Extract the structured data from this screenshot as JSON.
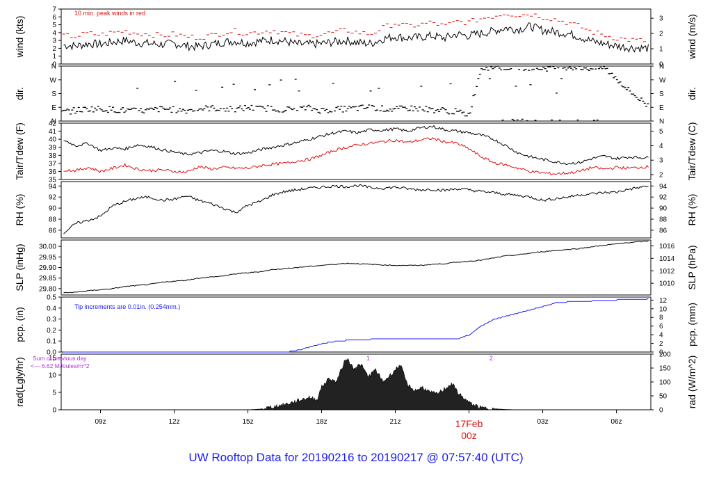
{
  "footer": "UW Rooftop Data for 20190216  to  20190217 @ 07:57:40  (UTC)",
  "colors": {
    "axis": "#000000",
    "red": "#e01010",
    "blue": "#1a1aff",
    "purple": "#b030d0"
  },
  "chart_data": [
    {
      "type": "line",
      "panel": "wind",
      "ylabel": "wind (kts)",
      "y2label": "wind (m/s)",
      "yticks": [
        0,
        1,
        2,
        3,
        4,
        5,
        6,
        7
      ],
      "ylim": [
        0,
        7
      ],
      "y2ticks": [
        0,
        1,
        2,
        3
      ],
      "y2_scale": 0.5144,
      "annotation": "10 min. peak winds in red",
      "series": [
        {
          "color": "#000000",
          "x": [
            7.5,
            8,
            8.5,
            9,
            9.5,
            10,
            10.5,
            11,
            11.5,
            12,
            12.5,
            13,
            13.5,
            14,
            14.5,
            15,
            15.5,
            16,
            16.5,
            17,
            17.5,
            18,
            18.5,
            19,
            19.5,
            20,
            20.5,
            21,
            21.5,
            22,
            22.5,
            23,
            23.5,
            24,
            24.5,
            25,
            25.5,
            26,
            26.5,
            27,
            27.5,
            28,
            28.5,
            29,
            29.5,
            30,
            30.5,
            31.3
          ],
          "y": [
            2.4,
            2.3,
            2.6,
            2.5,
            2.8,
            3.0,
            2.7,
            2.6,
            2.5,
            2.6,
            2.3,
            2.2,
            2.5,
            2.8,
            2.9,
            2.7,
            2.9,
            3.1,
            2.9,
            2.5,
            2.5,
            2.6,
            2.8,
            3.0,
            2.7,
            2.6,
            3.2,
            3.5,
            3.3,
            3.4,
            3.6,
            3.3,
            3.8,
            3.6,
            3.9,
            4.2,
            4.6,
            4.4,
            4.8,
            4.3,
            4.1,
            3.9,
            3.5,
            2.9,
            2.6,
            2.3,
            2.1,
            2.0
          ]
        },
        {
          "color": "#e01010",
          "x": [
            7.5,
            8,
            8.5,
            9,
            9.5,
            10,
            10.5,
            11,
            11.5,
            12,
            12.5,
            13,
            13.5,
            14,
            14.5,
            15,
            15.5,
            16,
            16.5,
            17,
            17.5,
            18,
            18.5,
            19,
            19.5,
            20,
            20.5,
            21,
            21.5,
            22,
            22.5,
            23,
            23.5,
            24,
            24.5,
            25,
            25.5,
            26,
            26.5,
            27,
            27.5,
            28,
            28.5,
            29,
            29.5,
            30,
            30.5,
            31.3
          ],
          "y": [
            3.6,
            3.5,
            3.9,
            3.7,
            4.0,
            4.2,
            3.9,
            3.8,
            3.6,
            3.8,
            3.5,
            3.4,
            3.6,
            4.0,
            4.2,
            3.9,
            4.1,
            4.3,
            4.0,
            3.7,
            3.6,
            3.8,
            4.0,
            4.3,
            4.0,
            3.8,
            4.6,
            5.2,
            4.8,
            5.0,
            5.3,
            4.8,
            5.4,
            5.3,
            5.8,
            6.1,
            6.5,
            6.2,
            6.4,
            6.0,
            5.7,
            5.3,
            4.8,
            4.1,
            3.7,
            3.3,
            3.1,
            2.9
          ]
        }
      ]
    },
    {
      "type": "scatter",
      "panel": "dir",
      "ylabel": "dir.",
      "y2label": "dir.",
      "yticklabels": [
        "N",
        "E",
        "S",
        "W",
        "N"
      ],
      "ylim": [
        0,
        360
      ],
      "series": [
        {
          "color": "#000000",
          "x": [
            7.5,
            8,
            8.5,
            9,
            9.5,
            10,
            10.5,
            11,
            11.5,
            12,
            12.5,
            13,
            13.5,
            14,
            14.5,
            15,
            15.5,
            16,
            16.5,
            17,
            17.5,
            18,
            18.5,
            19,
            19.5,
            20,
            20.5,
            21,
            21.5,
            22,
            22.5,
            23,
            23.5,
            24,
            24.5,
            25,
            25.5,
            26,
            26.5,
            27,
            27.5,
            28,
            28.5,
            29,
            29.5,
            30,
            30.5,
            31.3
          ],
          "y": [
            60,
            70,
            80,
            80,
            75,
            70,
            65,
            70,
            80,
            75,
            70,
            80,
            85,
            80,
            75,
            90,
            80,
            85,
            75,
            80,
            85,
            70,
            75,
            80,
            85,
            90,
            80,
            75,
            85,
            80,
            75,
            70,
            60,
            40,
            350,
            355,
            350,
            355,
            350,
            345,
            350,
            355,
            350,
            345,
            350,
            280,
            200,
            100
          ]
        }
      ]
    },
    {
      "type": "line",
      "panel": "temperature",
      "ylabel": "Tair/Tdew (F)",
      "y2label": "Tair/Tdew (C)",
      "yticks": [
        35,
        36,
        37,
        38,
        39,
        40,
        41,
        42
      ],
      "ylim": [
        35,
        42
      ],
      "y2ticks": [
        2,
        3,
        4,
        5
      ],
      "series": [
        {
          "color": "#000000",
          "x": [
            7.5,
            8,
            8.5,
            9,
            9.5,
            10,
            10.5,
            11,
            11.5,
            12,
            12.5,
            13,
            13.5,
            14,
            14.5,
            15,
            15.5,
            16,
            16.5,
            17,
            17.5,
            18,
            18.5,
            19,
            19.5,
            20,
            20.5,
            21,
            21.5,
            22,
            22.5,
            23,
            23.5,
            24,
            24.5,
            25,
            25.5,
            26,
            26.5,
            27,
            27.5,
            28,
            28.5,
            29,
            29.5,
            30,
            30.5,
            31.3
          ],
          "y": [
            39.9,
            39.2,
            39.5,
            38.6,
            38.9,
            38.8,
            39.3,
            39.1,
            38.7,
            38.4,
            38.1,
            38.3,
            38.6,
            38.5,
            38.2,
            38.3,
            38.7,
            39.0,
            39.3,
            39.6,
            40.0,
            40.4,
            40.8,
            41.0,
            40.8,
            41.2,
            41.1,
            41.3,
            41.0,
            41.4,
            41.6,
            41.2,
            41.0,
            40.8,
            40.5,
            40.0,
            39.2,
            38.3,
            37.8,
            37.5,
            37.2,
            37.0,
            37.1,
            37.6,
            37.9,
            37.6,
            37.8,
            37.7
          ]
        },
        {
          "color": "#e01010",
          "x": [
            7.5,
            8,
            8.5,
            9,
            9.5,
            10,
            10.5,
            11,
            11.5,
            12,
            12.5,
            13,
            13.5,
            14,
            14.5,
            15,
            15.5,
            16,
            16.5,
            17,
            17.5,
            18,
            18.5,
            19,
            19.5,
            20,
            20.5,
            21,
            21.5,
            22,
            22.5,
            23,
            23.5,
            24,
            24.5,
            25,
            25.5,
            26,
            26.5,
            27,
            27.5,
            28,
            28.5,
            29,
            29.5,
            30,
            30.5,
            31.3
          ],
          "y": [
            36.2,
            36.1,
            36.5,
            36.0,
            36.4,
            36.8,
            36.3,
            36.1,
            36.2,
            36.0,
            35.9,
            36.6,
            36.3,
            36.5,
            36.4,
            36.4,
            36.7,
            36.9,
            37.0,
            37.3,
            37.5,
            38.0,
            38.6,
            39.0,
            39.3,
            39.5,
            39.7,
            39.9,
            39.6,
            39.9,
            40.1,
            39.7,
            39.5,
            38.8,
            37.8,
            37.1,
            36.8,
            36.4,
            36.0,
            35.8,
            35.7,
            35.8,
            36.0,
            36.5,
            36.3,
            36.5,
            36.4,
            36.6
          ]
        }
      ]
    },
    {
      "type": "line",
      "panel": "rh",
      "ylabel": "RH (%)",
      "y2label": "RH (%)",
      "yticks": [
        86,
        88,
        90,
        92,
        94
      ],
      "ylim": [
        84.6,
        94.8
      ],
      "series": [
        {
          "color": "#000000",
          "x": [
            7.5,
            8,
            8.5,
            9,
            9.5,
            10,
            10.5,
            11,
            11.5,
            12,
            12.5,
            13,
            13.5,
            14,
            14.5,
            15,
            15.5,
            16,
            16.5,
            17,
            17.5,
            18,
            18.5,
            19,
            19.5,
            20,
            20.5,
            21,
            21.5,
            22,
            22.5,
            23,
            23.5,
            24,
            24.5,
            25,
            25.5,
            26,
            26.5,
            27,
            27.5,
            28,
            28.5,
            29,
            29.5,
            30,
            30.5,
            31.3
          ],
          "y": [
            85.5,
            87.2,
            87.8,
            88.5,
            90.4,
            91.2,
            91.8,
            92.0,
            91.4,
            91.6,
            92.2,
            91.4,
            90.8,
            90.0,
            89.2,
            90.5,
            91.2,
            92.4,
            93.0,
            93.3,
            93.6,
            93.8,
            94.0,
            93.9,
            94.1,
            93.7,
            93.6,
            93.8,
            93.5,
            93.3,
            93.4,
            93.2,
            93.5,
            93.3,
            93.0,
            92.8,
            92.5,
            92.3,
            92.0,
            91.4,
            91.7,
            92.0,
            92.4,
            92.6,
            92.8,
            92.9,
            93.4,
            94.0
          ]
        }
      ]
    },
    {
      "type": "line",
      "panel": "slp",
      "ylabel": "SLP (inHg)",
      "y2label": "SLP (hPa)",
      "yticks": [
        29.8,
        29.85,
        29.9,
        29.95,
        30.0
      ],
      "yticklabels": [
        "29.80",
        "29.85",
        "29.90",
        "29.95",
        "30.00"
      ],
      "ylim": [
        29.77,
        30.03
      ],
      "y2ticks": [
        1010,
        1012,
        1014,
        1016
      ],
      "series": [
        {
          "color": "#000000",
          "x": [
            7.5,
            8,
            8.5,
            9,
            9.5,
            10,
            10.5,
            11,
            11.5,
            12,
            12.5,
            13,
            13.5,
            14,
            14.5,
            15,
            15.5,
            16,
            16.5,
            17,
            17.5,
            18,
            18.5,
            19,
            19.5,
            20,
            20.5,
            21,
            21.5,
            22,
            22.5,
            23,
            23.5,
            24,
            24.5,
            25,
            25.5,
            26,
            26.5,
            27,
            27.5,
            28,
            28.5,
            29,
            29.5,
            30,
            30.5,
            31.3
          ],
          "y": [
            29.78,
            29.783,
            29.79,
            29.795,
            29.8,
            29.81,
            29.815,
            29.82,
            29.83,
            29.835,
            29.84,
            29.85,
            29.855,
            29.86,
            29.87,
            29.875,
            29.88,
            29.89,
            29.895,
            29.9,
            29.905,
            29.91,
            29.915,
            29.92,
            29.918,
            29.915,
            29.912,
            29.91,
            29.91,
            29.91,
            29.915,
            29.918,
            29.925,
            29.93,
            29.935,
            29.945,
            29.955,
            29.96,
            29.968,
            29.975,
            29.98,
            29.985,
            29.99,
            29.998,
            30.005,
            30.012,
            30.018,
            30.025
          ]
        }
      ]
    },
    {
      "type": "line",
      "panel": "pcp",
      "ylabel": "pcp. (in)",
      "y2label": "pcp. (mm)",
      "yticks": [
        0.0,
        0.1,
        0.2,
        0.3,
        0.4,
        0.5
      ],
      "yticklabels": [
        "0.0",
        "0.1",
        "0.2",
        "0.3",
        "0.4",
        "0.5"
      ],
      "ylim": [
        0,
        0.5
      ],
      "y2ticks": [
        0,
        2,
        4,
        6,
        8,
        10,
        12
      ],
      "annotation": "Tip increments are 0.01in. (0.254mm.)",
      "series": [
        {
          "color": "#1a1aff",
          "x": [
            7.5,
            16.5,
            17.2,
            17.5,
            18.0,
            18.5,
            19.0,
            20.0,
            21.0,
            22.0,
            23.5,
            24.0,
            24.5,
            25.0,
            25.5,
            26.0,
            26.5,
            27.0,
            27.5,
            28.0,
            29.0,
            30.0,
            31.3
          ],
          "y": [
            0.0,
            0.0,
            0.03,
            0.05,
            0.08,
            0.1,
            0.11,
            0.12,
            0.12,
            0.12,
            0.12,
            0.16,
            0.24,
            0.3,
            0.33,
            0.36,
            0.39,
            0.42,
            0.45,
            0.46,
            0.47,
            0.48,
            0.49
          ]
        }
      ]
    },
    {
      "type": "area",
      "panel": "rad",
      "ylabel": "rad(Lgly/hr)",
      "y2label": "rad (W/m^2)",
      "yticks": [
        0,
        5,
        10,
        15
      ],
      "ylim": [
        0,
        16
      ],
      "y2ticks": [
        0,
        50,
        100,
        150,
        200
      ],
      "annotations": [
        "Sum of previous day",
        "<--- 6.62 MJoules/m^2",
        "1",
        "2"
      ],
      "series": [
        {
          "color": "#222222",
          "x": [
            15.0,
            15.5,
            16.0,
            16.5,
            17.0,
            17.5,
            17.8,
            18.0,
            18.3,
            18.6,
            19.0,
            19.3,
            19.6,
            19.9,
            20.2,
            20.5,
            20.8,
            21.2,
            21.5,
            21.8,
            22.1,
            22.4,
            22.7,
            23.0,
            23.3,
            23.6,
            24.0,
            24.5,
            25.0,
            25.5,
            26.0
          ],
          "y": [
            0.0,
            0.2,
            0.8,
            1.5,
            2.5,
            3.6,
            2.8,
            6.5,
            9.0,
            8.0,
            15.0,
            12.0,
            13.0,
            9.5,
            11.5,
            8.0,
            10.0,
            13.0,
            7.0,
            5.5,
            6.5,
            5.0,
            4.5,
            6.0,
            7.5,
            4.5,
            2.0,
            0.5,
            0.3,
            0.1,
            0.0
          ]
        }
      ]
    }
  ],
  "xaxis": {
    "ticks": [
      {
        "x": 9,
        "label": "09z"
      },
      {
        "x": 12,
        "label": "12z"
      },
      {
        "x": 15,
        "label": "15z"
      },
      {
        "x": 18,
        "label": "18z"
      },
      {
        "x": 21,
        "label": "21z"
      },
      {
        "x": 27,
        "label": "03z"
      },
      {
        "x": 30,
        "label": "06z"
      }
    ],
    "date_marker": {
      "x": 24,
      "date": "17Feb",
      "time": "00z"
    }
  }
}
